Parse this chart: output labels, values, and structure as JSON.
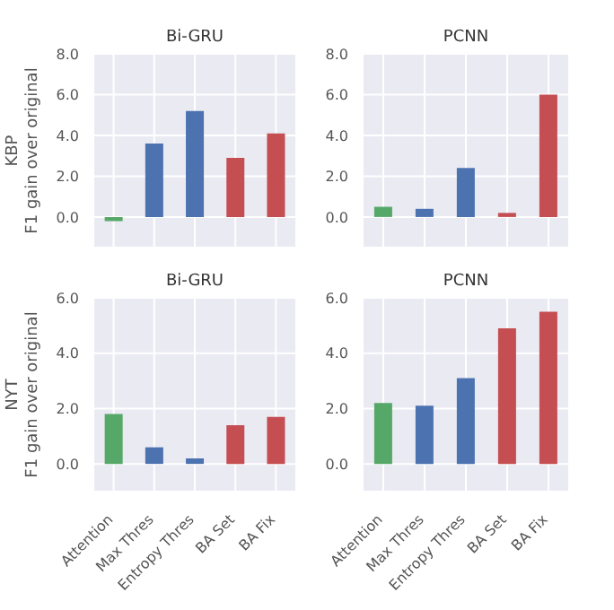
{
  "chart_data": [
    {
      "type": "bar",
      "title": "Bi-GRU",
      "ylabel": "KBP\nF1 gain over original",
      "categories": [
        null,
        null,
        null,
        null,
        null
      ],
      "values": [
        -0.2,
        3.6,
        5.2,
        2.9,
        4.1
      ],
      "colors": [
        "#55a868",
        "#4c72b0",
        "#4c72b0",
        "#c44e52",
        "#c44e52"
      ],
      "ylim": [
        -1.5,
        8
      ],
      "yticks": [
        {
          "value": 0,
          "label": "0.0"
        },
        {
          "value": 2,
          "label": "2.0"
        },
        {
          "value": 4,
          "label": "4.0"
        },
        {
          "value": 6,
          "label": "6.0"
        },
        {
          "value": 8,
          "label": "8.0"
        }
      ],
      "grid": true,
      "tick_labels": "y"
    },
    {
      "type": "bar",
      "title": "PCNN",
      "categories": [
        null,
        null,
        null,
        null,
        null
      ],
      "values": [
        0.5,
        0.4,
        2.4,
        0.2,
        6.0
      ],
      "colors": [
        "#55a868",
        "#4c72b0",
        "#4c72b0",
        "#c44e52",
        "#c44e52"
      ],
      "ylim": [
        -1.5,
        8
      ],
      "yticks": [
        {
          "value": 0,
          "label": "0.0"
        },
        {
          "value": 2,
          "label": "2.0"
        },
        {
          "value": 4,
          "label": "4.0"
        },
        {
          "value": 6,
          "label": "6.0"
        },
        {
          "value": 8,
          "label": "8.0"
        }
      ],
      "grid": true,
      "tick_labels": "y"
    },
    {
      "type": "bar",
      "title": "Bi-GRU",
      "ylabel": "NYT\nF1 gain over original",
      "categories": [
        "Attention",
        "Max Thres",
        "Entropy Thres",
        "BA Set",
        "BA Fix"
      ],
      "values": [
        1.8,
        0.6,
        0.2,
        1.4,
        1.7
      ],
      "colors": [
        "#55a868",
        "#4c72b0",
        "#4c72b0",
        "#c44e52",
        "#c44e52"
      ],
      "ylim": [
        -1,
        6
      ],
      "yticks": [
        {
          "value": 0,
          "label": "0.0"
        },
        {
          "value": 2,
          "label": "2.0"
        },
        {
          "value": 4,
          "label": "4.0"
        },
        {
          "value": 6,
          "label": "6.0"
        }
      ],
      "grid": true
    },
    {
      "type": "bar",
      "title": "PCNN",
      "categories": [
        "Attention",
        "Max Thres",
        "Entropy Thres",
        "BA Set",
        "BA Fix"
      ],
      "values": [
        2.2,
        2.1,
        3.1,
        4.9,
        5.5
      ],
      "colors": [
        "#55a868",
        "#4c72b0",
        "#4c72b0",
        "#c44e52",
        "#c44e52"
      ],
      "ylim": [
        -1,
        6
      ],
      "yticks": [
        {
          "value": 0,
          "label": "0.0"
        },
        {
          "value": 2,
          "label": "2.0"
        },
        {
          "value": 4,
          "label": "4.0"
        },
        {
          "value": 6,
          "label": "6.0"
        }
      ],
      "grid": true
    }
  ]
}
